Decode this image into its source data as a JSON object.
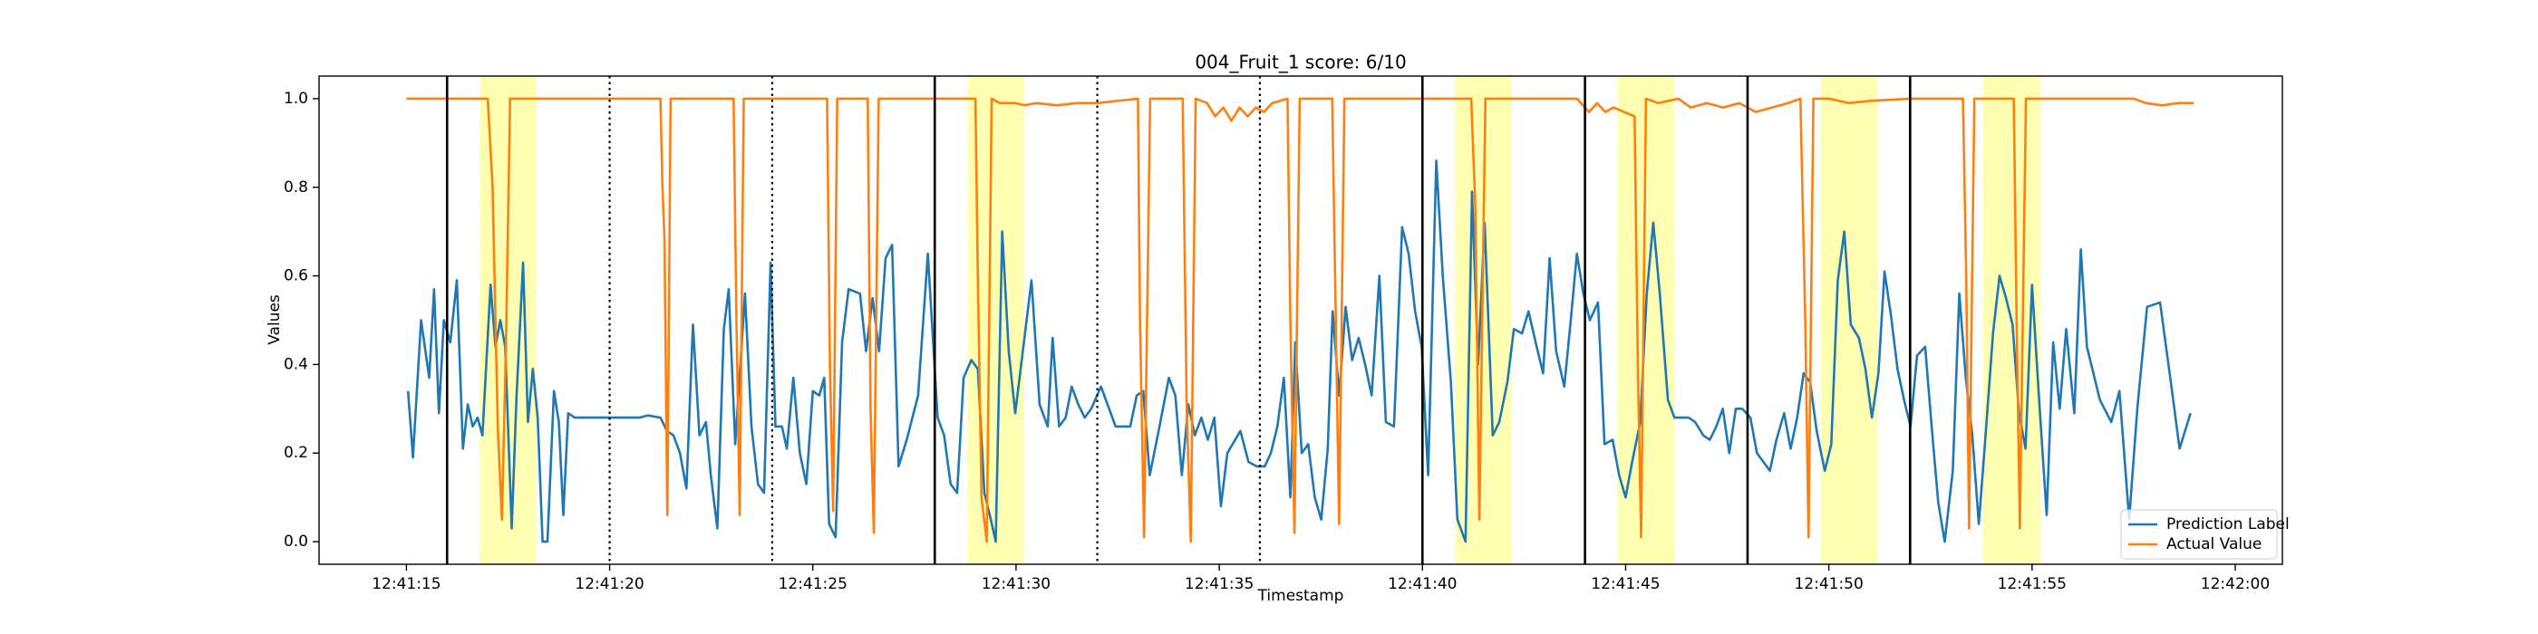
{
  "chart_data": {
    "type": "line",
    "title": "004_Fruit_1 score: 6/10",
    "xlabel": "Timestamp",
    "ylabel": "Values",
    "xlim": [
      12.85,
      61.16
    ],
    "ylim": [
      -0.051,
      1.051
    ],
    "xticks": [
      {
        "value": 15,
        "label": "12:41:15"
      },
      {
        "value": 20,
        "label": "12:41:20"
      },
      {
        "value": 25,
        "label": "12:41:25"
      },
      {
        "value": 30,
        "label": "12:41:30"
      },
      {
        "value": 35,
        "label": "12:41:35"
      },
      {
        "value": 40,
        "label": "12:41:40"
      },
      {
        "value": 45,
        "label": "12:41:45"
      },
      {
        "value": 50,
        "label": "12:41:50"
      },
      {
        "value": 55,
        "label": "12:41:55"
      },
      {
        "value": 60,
        "label": "12:42:00"
      }
    ],
    "yticks": [
      {
        "value": 0,
        "label": "0.0"
      },
      0.2,
      0.4,
      0.6,
      0.8,
      {
        "value": 1,
        "label": "1.0"
      }
    ],
    "grid": false,
    "legend": "lower right",
    "spans": [
      [
        16.8,
        18.2
      ],
      [
        28.8,
        30.2
      ],
      [
        40.8,
        42.2
      ],
      [
        44.8,
        46.2
      ],
      [
        49.8,
        51.2
      ],
      [
        53.8,
        55.2
      ]
    ],
    "span_color": "#ffff00",
    "vlines_solid": [
      16,
      28,
      40,
      44,
      48,
      52
    ],
    "vlines_dotted": [
      20,
      24,
      32,
      36
    ],
    "vline_color": "#000000",
    "series": [
      {
        "name": "Prediction Label",
        "color": "#1f77b4",
        "x": [
          15.04,
          15.16,
          15.36,
          15.56,
          15.68,
          15.8,
          15.92,
          16.08,
          16.24,
          16.39,
          16.51,
          16.63,
          16.75,
          16.87,
          17.07,
          17.19,
          17.31,
          17.43,
          17.59,
          17.71,
          17.87,
          17.99,
          18.11,
          18.23,
          18.35,
          18.47,
          18.63,
          18.75,
          18.86,
          18.98,
          19.14,
          19.54,
          20.14,
          20.74,
          20.94,
          21.25,
          21.41,
          21.57,
          21.73,
          21.89,
          22.05,
          22.21,
          22.37,
          22.49,
          22.65,
          22.81,
          22.93,
          23.09,
          23.33,
          23.49,
          23.65,
          23.8,
          23.96,
          24.08,
          24.24,
          24.36,
          24.52,
          24.68,
          24.84,
          25.0,
          25.16,
          25.28,
          25.4,
          25.56,
          25.72,
          25.88,
          26.16,
          26.31,
          26.47,
          26.63,
          26.79,
          26.95,
          27.11,
          27.31,
          27.59,
          27.83,
          28.07,
          28.23,
          28.39,
          28.55,
          28.71,
          28.9,
          29.06,
          29.22,
          29.38,
          29.5,
          29.66,
          29.82,
          29.98,
          30.18,
          30.38,
          30.58,
          30.78,
          30.9,
          31.06,
          31.22,
          31.37,
          31.53,
          31.69,
          31.85,
          32.09,
          32.25,
          32.45,
          32.81,
          32.97,
          33.13,
          33.29,
          33.53,
          33.76,
          33.92,
          34.08,
          34.24,
          34.4,
          34.56,
          34.72,
          34.88,
          35.04,
          35.2,
          35.52,
          35.72,
          35.92,
          36.12,
          36.27,
          36.43,
          36.59,
          36.75,
          36.87,
          37.03,
          37.19,
          37.35,
          37.51,
          37.67,
          37.79,
          37.95,
          38.11,
          38.27,
          38.43,
          38.59,
          38.75,
          38.94,
          39.1,
          39.3,
          39.5,
          39.66,
          39.82,
          39.98,
          40.14,
          40.34,
          40.5,
          40.7,
          40.86,
          41.06,
          41.22,
          41.37,
          41.53,
          41.73,
          41.89,
          42.09,
          42.25,
          42.45,
          42.61,
          42.81,
          42.97,
          43.13,
          43.29,
          43.49,
          43.65,
          43.8,
          43.96,
          44.12,
          44.32,
          44.48,
          44.68,
          44.84,
          45.0,
          45.16,
          45.36,
          45.52,
          45.68,
          45.84,
          46.04,
          46.2,
          46.35,
          46.55,
          46.71,
          46.91,
          47.07,
          47.23,
          47.39,
          47.55,
          47.71,
          47.87,
          48.07,
          48.23,
          48.39,
          48.55,
          48.71,
          48.9,
          49.06,
          49.22,
          49.38,
          49.54,
          49.7,
          49.9,
          50.06,
          50.22,
          50.38,
          50.54,
          50.74,
          50.9,
          51.06,
          51.22,
          51.37,
          51.53,
          51.69,
          51.85,
          52.01,
          52.17,
          52.37,
          52.53,
          52.69,
          52.85,
          53.05,
          53.21,
          53.37,
          53.53,
          53.69,
          53.84,
          54.04,
          54.2,
          54.36,
          54.52,
          54.68,
          54.84,
          55.0,
          55.16,
          55.36,
          55.52,
          55.68,
          55.84,
          56.04,
          56.2,
          56.35,
          56.67,
          56.95,
          57.15,
          57.39,
          57.59,
          57.83,
          58.15,
          58.43,
          58.63,
          58.9
        ],
        "values": [
          0.34,
          0.19,
          0.5,
          0.37,
          0.57,
          0.29,
          0.5,
          0.45,
          0.59,
          0.21,
          0.31,
          0.26,
          0.28,
          0.24,
          0.58,
          0.44,
          0.5,
          0.44,
          0.03,
          0.33,
          0.63,
          0.27,
          0.39,
          0.28,
          0.0,
          0.0,
          0.34,
          0.27,
          0.06,
          0.29,
          0.28,
          0.28,
          0.28,
          0.28,
          0.285,
          0.28,
          0.25,
          0.24,
          0.2,
          0.12,
          0.49,
          0.24,
          0.27,
          0.15,
          0.03,
          0.48,
          0.57,
          0.22,
          0.56,
          0.26,
          0.13,
          0.11,
          0.63,
          0.26,
          0.26,
          0.21,
          0.37,
          0.2,
          0.13,
          0.34,
          0.33,
          0.37,
          0.04,
          0.01,
          0.45,
          0.57,
          0.56,
          0.43,
          0.55,
          0.43,
          0.64,
          0.67,
          0.17,
          0.23,
          0.33,
          0.65,
          0.28,
          0.24,
          0.13,
          0.11,
          0.37,
          0.41,
          0.39,
          0.11,
          0.05,
          0.0,
          0.7,
          0.43,
          0.29,
          0.44,
          0.59,
          0.31,
          0.26,
          0.46,
          0.26,
          0.28,
          0.35,
          0.31,
          0.28,
          0.3,
          0.35,
          0.31,
          0.26,
          0.26,
          0.33,
          0.34,
          0.15,
          0.26,
          0.37,
          0.33,
          0.15,
          0.31,
          0.24,
          0.28,
          0.23,
          0.28,
          0.08,
          0.2,
          0.25,
          0.18,
          0.17,
          0.17,
          0.2,
          0.26,
          0.37,
          0.1,
          0.45,
          0.2,
          0.22,
          0.1,
          0.05,
          0.21,
          0.52,
          0.33,
          0.53,
          0.41,
          0.46,
          0.4,
          0.33,
          0.6,
          0.27,
          0.26,
          0.71,
          0.65,
          0.52,
          0.44,
          0.15,
          0.86,
          0.6,
          0.36,
          0.05,
          0.0,
          0.79,
          0.4,
          0.72,
          0.24,
          0.27,
          0.36,
          0.48,
          0.47,
          0.52,
          0.44,
          0.38,
          0.64,
          0.43,
          0.35,
          0.5,
          0.65,
          0.56,
          0.5,
          0.54,
          0.22,
          0.23,
          0.15,
          0.1,
          0.18,
          0.27,
          0.56,
          0.72,
          0.56,
          0.32,
          0.28,
          0.28,
          0.28,
          0.27,
          0.24,
          0.23,
          0.26,
          0.3,
          0.2,
          0.3,
          0.3,
          0.28,
          0.2,
          0.18,
          0.16,
          0.23,
          0.29,
          0.21,
          0.28,
          0.38,
          0.36,
          0.25,
          0.16,
          0.22,
          0.59,
          0.7,
          0.49,
          0.46,
          0.39,
          0.28,
          0.38,
          0.61,
          0.51,
          0.39,
          0.32,
          0.26,
          0.42,
          0.44,
          0.26,
          0.09,
          0.0,
          0.16,
          0.56,
          0.37,
          0.24,
          0.04,
          0.22,
          0.47,
          0.6,
          0.55,
          0.49,
          0.29,
          0.21,
          0.58,
          0.34,
          0.06,
          0.45,
          0.3,
          0.48,
          0.29,
          0.66,
          0.44,
          0.32,
          0.27,
          0.34,
          0.05,
          0.3,
          0.53,
          0.54,
          0.35,
          0.21,
          0.29
        ]
      },
      {
        "name": "Actual Value",
        "color": "#ff7f0e",
        "x": [
          15.0,
          17.0,
          17.12,
          17.25,
          17.35,
          17.45,
          17.55,
          21.25,
          21.3,
          21.35,
          21.42,
          21.5,
          23.05,
          23.12,
          23.2,
          23.3,
          25.35,
          25.42,
          25.5,
          25.6,
          26.35,
          26.42,
          26.5,
          26.62,
          29.0,
          29.06,
          29.15,
          29.28,
          29.4,
          29.6,
          30.0,
          30.2,
          30.5,
          31.0,
          31.5,
          32.0,
          32.5,
          33.0,
          33.05,
          33.15,
          33.3,
          34.1,
          34.2,
          34.3,
          34.42,
          34.7,
          34.9,
          35.1,
          35.3,
          35.5,
          35.7,
          35.9,
          36.1,
          36.3,
          36.68,
          36.75,
          36.85,
          36.98,
          37.78,
          37.85,
          37.95,
          38.08,
          41.2,
          41.3,
          41.4,
          41.55,
          43.8,
          44.1,
          44.3,
          44.5,
          44.7,
          45.22,
          45.3,
          45.38,
          45.5,
          45.8,
          46.3,
          46.6,
          47.0,
          47.4,
          47.8,
          48.2,
          48.6,
          49.0,
          49.3,
          49.42,
          49.5,
          49.62,
          50.0,
          50.5,
          51.0,
          52.0,
          53.3,
          53.38,
          53.45,
          53.58,
          54.55,
          54.62,
          54.7,
          54.85,
          57.5,
          57.8,
          58.2,
          58.6,
          58.98
        ],
        "values": [
          1.0,
          1.0,
          0.8,
          0.25,
          0.05,
          0.45,
          1.0,
          1.0,
          0.8,
          0.68,
          0.06,
          1.0,
          1.0,
          0.5,
          0.06,
          1.0,
          1.0,
          0.4,
          0.07,
          1.0,
          1.0,
          0.3,
          0.02,
          1.0,
          1.0,
          0.6,
          0.1,
          0.0,
          1.0,
          0.99,
          0.99,
          0.985,
          0.99,
          0.985,
          0.99,
          0.99,
          0.995,
          1.0,
          0.5,
          0.01,
          1.0,
          1.0,
          0.3,
          0.0,
          1.0,
          0.99,
          0.96,
          0.98,
          0.95,
          0.98,
          0.96,
          0.98,
          0.97,
          0.99,
          1.0,
          0.5,
          0.02,
          1.0,
          1.0,
          0.6,
          0.04,
          1.0,
          1.0,
          0.76,
          0.05,
          1.0,
          1.0,
          0.97,
          0.99,
          0.97,
          0.98,
          0.96,
          0.4,
          0.01,
          1.0,
          0.99,
          1.0,
          0.98,
          0.99,
          0.98,
          0.99,
          0.97,
          0.98,
          0.99,
          1.0,
          0.5,
          0.01,
          1.0,
          1.0,
          0.99,
          0.995,
          1.0,
          1.0,
          0.6,
          0.03,
          1.0,
          1.0,
          0.5,
          0.03,
          1.0,
          1.0,
          0.99,
          0.985,
          0.99,
          0.99
        ]
      }
    ]
  }
}
